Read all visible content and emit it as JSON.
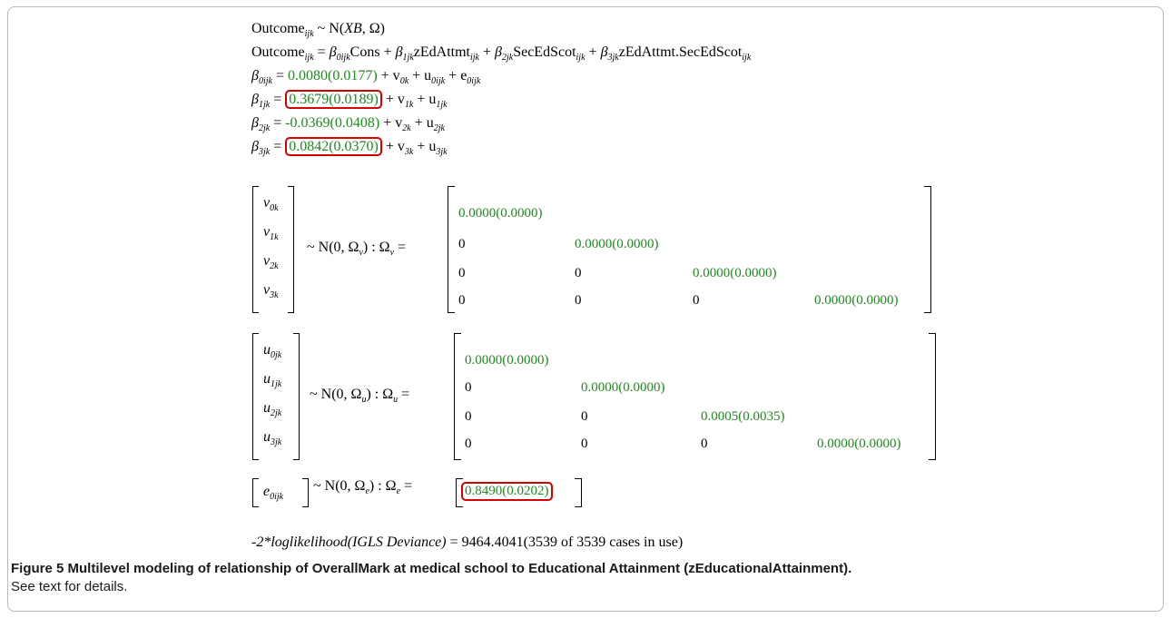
{
  "equations": {
    "line1": {
      "lhs": "Outcome",
      "lhs_sub": "ijk",
      "rhs": "~ N(",
      "xb": "XB,",
      "omega": "Ω)"
    },
    "line2": {
      "lhs": "Outcome",
      "lhs_sub": "ijk",
      "eq": "=",
      "b0": "β",
      "b0_sub": "0ijk",
      "t0": "Cons +",
      "b1": "β",
      "b1_sub": "1jk",
      "t1": "zEdAttmt",
      "t1_sub": "ijk",
      "plus1": "+",
      "b2": "β",
      "b2_sub": "2jk",
      "t2": "SecEdScot",
      "t2_sub": "ijk",
      "plus2": "+",
      "b3": "β",
      "b3_sub": "3jk",
      "t3": "zEdAttmt.SecEdScot",
      "t3_sub": "ijk"
    },
    "beta0": {
      "lhs": "β",
      "sub": "0ijk",
      "eq": "=",
      "value": "0.0080(0.0177)",
      "rest": "+ v",
      "rest_sub": "0k",
      "rest2": "+ u",
      "rest2_sub": "0ijk",
      "rest3": "+ e",
      "rest3_sub": "0ijk"
    },
    "beta1": {
      "lhs": "β",
      "sub": "1jk",
      "eq": "=",
      "value": "0.3679(0.0189)",
      "rest": "+ v",
      "rest_sub": "1k",
      "rest2": "+ u",
      "rest2_sub": "1jk"
    },
    "beta2": {
      "lhs": "β",
      "sub": "2jk",
      "eq": "=",
      "value": "-0.0369(0.0408)",
      "rest": "+ v",
      "rest_sub": "2k",
      "rest2": "+ u",
      "rest2_sub": "2jk"
    },
    "beta3": {
      "lhs": "β",
      "sub": "3jk",
      "eq": "=",
      "value": "0.0842(0.0370)",
      "rest": "+ v",
      "rest_sub": "3k",
      "rest2": "+ u",
      "rest2_sub": "3jk"
    }
  },
  "v_block": {
    "vector": [
      {
        "sym": "v",
        "sub": "0k"
      },
      {
        "sym": "v",
        "sub": "1k"
      },
      {
        "sym": "v",
        "sub": "2k"
      },
      {
        "sym": "v",
        "sub": "3k"
      }
    ],
    "dist": "~ N(0,  Ω",
    "dist_sub": "v",
    "dist_end": ")  :  Ω",
    "omega_sub": "v",
    "omega_eq": "=",
    "matrix": [
      [
        "0.0000(0.0000)"
      ],
      [
        "0",
        "0.0000(0.0000)"
      ],
      [
        "0",
        "0",
        "0.0000(0.0000)"
      ],
      [
        "0",
        "0",
        "0",
        "0.0000(0.0000)"
      ]
    ]
  },
  "u_block": {
    "vector": [
      {
        "sym": "u",
        "sub": "0jk"
      },
      {
        "sym": "u",
        "sub": "1jk"
      },
      {
        "sym": "u",
        "sub": "2jk"
      },
      {
        "sym": "u",
        "sub": "3jk"
      }
    ],
    "dist": "~ N(0,  Ω",
    "dist_sub": "u",
    "dist_end": ")  :  Ω",
    "omega_sub": "u",
    "omega_eq": "=",
    "matrix": [
      [
        "0.0000(0.0000)"
      ],
      [
        "0",
        "0.0000(0.0000)"
      ],
      [
        "0",
        "0",
        "0.0005(0.0035)"
      ],
      [
        "0",
        "0",
        "0",
        "0.0000(0.0000)"
      ]
    ]
  },
  "e_block": {
    "vector": [
      {
        "sym": "e",
        "sub": "0ijk"
      }
    ],
    "dist": "~ N(0,  Ω",
    "dist_sub": "e",
    "dist_end": ")  :  Ω",
    "omega_sub": "e",
    "omega_eq": "=",
    "value": "0.8490(0.0202)"
  },
  "deviance": {
    "label": "-2*loglikelihood(IGLS Deviance)",
    "value": "= 9464.4041(3539 of 3539 cases in use)"
  },
  "caption": {
    "bold": "Figure 5 Multilevel modeling of relationship of OverallMark at medical school to Educational Attainment (zEducationalAttainment).",
    "normal": "See text for details."
  },
  "colors": {
    "estimate": "#1f8a1f",
    "highlight_box": "#d40000",
    "frame": "#b9b9b9"
  }
}
